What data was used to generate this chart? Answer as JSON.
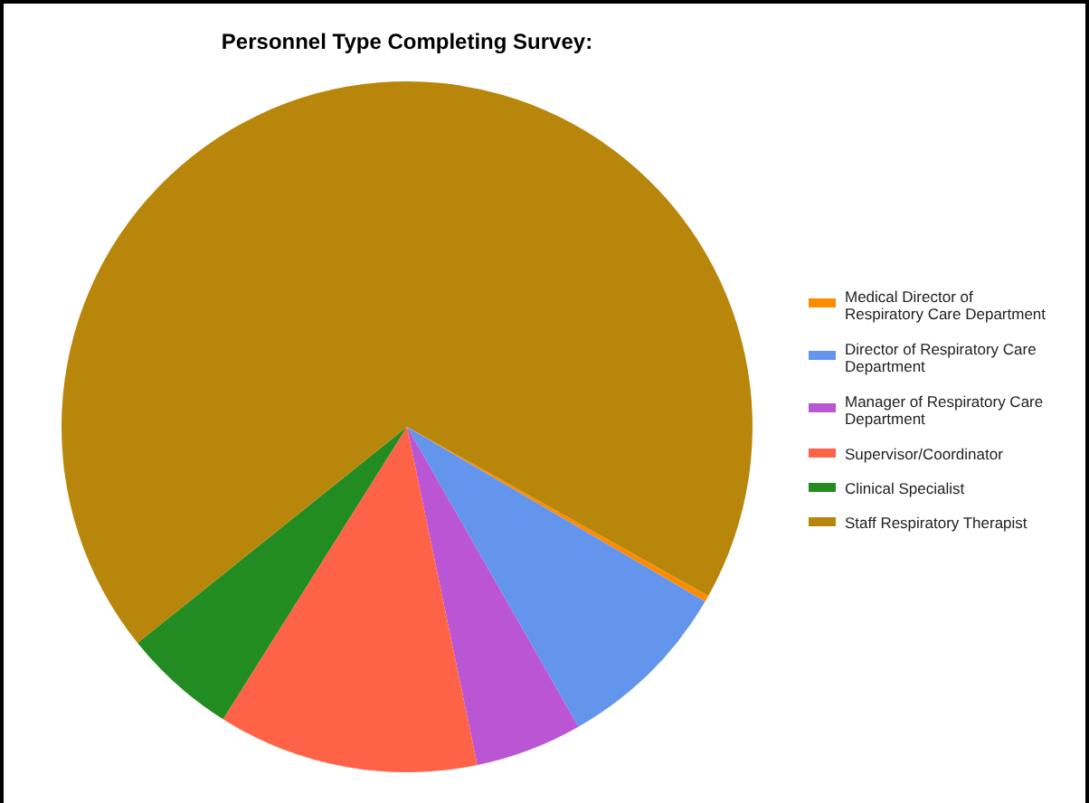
{
  "chart_data": {
    "type": "pie",
    "title": "Personnel Type Completing Survey:",
    "categories": [
      "Medical Director of Respiratory Care Department",
      "Director of Respiratory Care Department",
      "Manager of Respiratory Care Department",
      "Supervisor/Coordinator",
      "Clinical Specialist",
      "Staff Respiratory Therapist"
    ],
    "values": [
      0.3,
      8.3,
      5,
      12.2,
      5.3,
      68.9
    ],
    "colors": [
      "#ff8c00",
      "#6495ed",
      "#ba55d3",
      "#ff6347",
      "#228b22",
      "#b8860b"
    ],
    "legend": "right"
  }
}
